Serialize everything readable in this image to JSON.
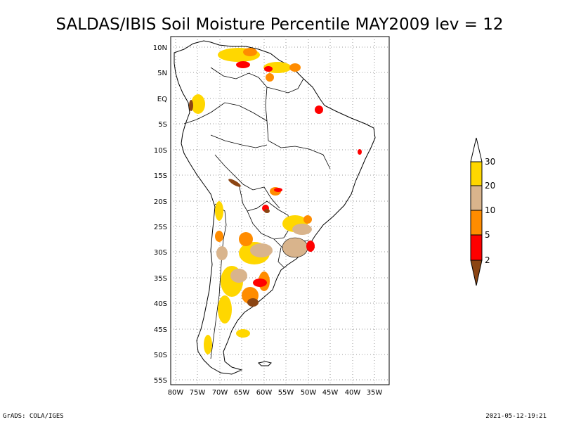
{
  "title": "SALDAS/IBIS Soil Moisture Percentile MAY2009 lev = 12",
  "map": {
    "lon_range": [
      -80,
      -30
    ],
    "lat_range": [
      -56,
      12
    ],
    "grid": "dotted",
    "lat_labels": [
      "10N",
      "5N",
      "EQ",
      "5S",
      "10S",
      "15S",
      "20S",
      "25S",
      "30S",
      "35S",
      "40S",
      "45S",
      "50S",
      "55S"
    ],
    "lon_labels": [
      "80W",
      "75W",
      "70W",
      "65W",
      "60W",
      "55W",
      "50W",
      "45W",
      "40W",
      "35W"
    ]
  },
  "colorbar": {
    "labels": [
      "30",
      "20",
      "10",
      "5",
      "2"
    ],
    "colors": {
      "above_30": "#ffffff",
      "20_30": "#ffd700",
      "10_20": "#d9b48c",
      "5_10": "#ff8c00",
      "2_5": "#ff0000",
      "below_2": "#8b4513"
    }
  },
  "footer": {
    "left": "GrADS: COLA/IGES",
    "right": "2021-05-12-19:21"
  }
}
